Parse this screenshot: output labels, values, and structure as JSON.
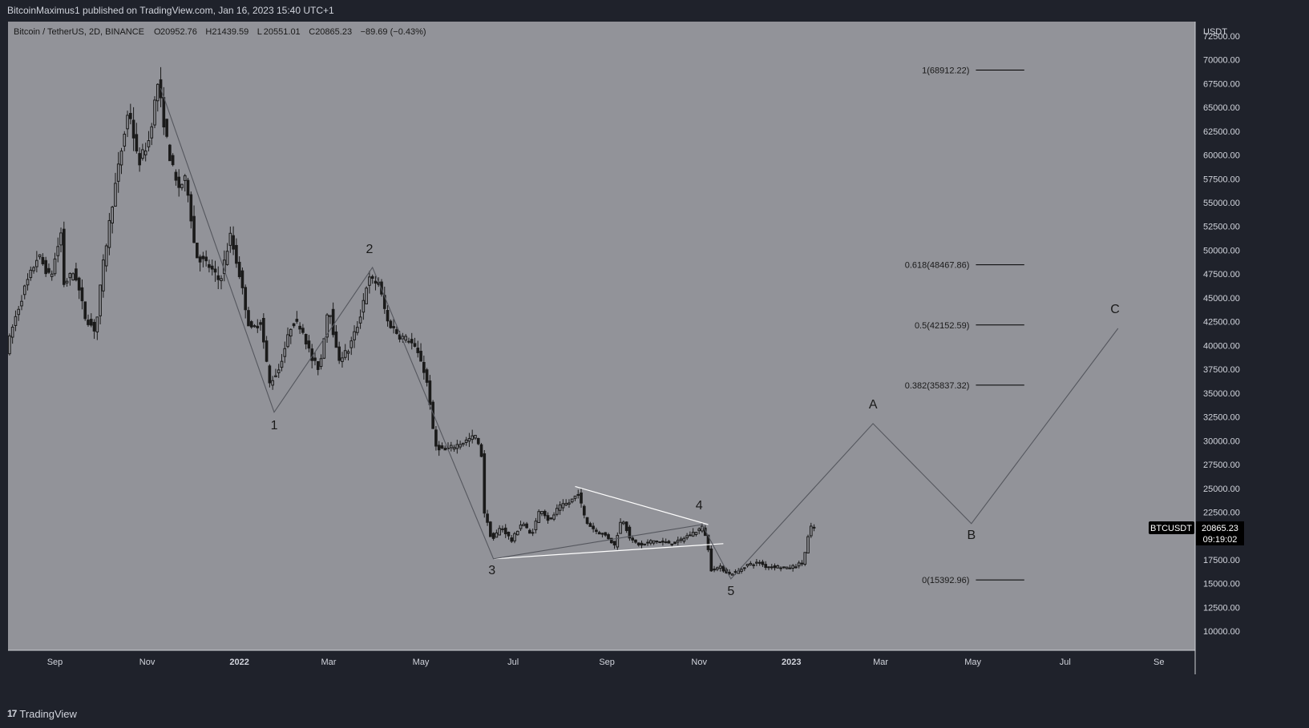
{
  "publish_line": "BitcoinMaximus1 published on TradingView.com, Jan 16, 2023 15:40 UTC+1",
  "footer": {
    "logo_glyph": "17",
    "brand": "TradingView"
  },
  "colors": {
    "background": "#1f222b",
    "plot_bg": "#929399",
    "candle": "#1a1a1a",
    "pattern_line": "#ffffff",
    "fib_line": "#000000",
    "text_dark": "#1a1a1a",
    "text_light": "#d1d4dc",
    "label_bg": "#000000"
  },
  "chart_data": {
    "type": "candlestick",
    "title": "Bitcoin / TetherUS, 2D, BINANCE",
    "ohlc_legend": [
      {
        "key": "O",
        "value": "20952.76"
      },
      {
        "key": "H",
        "value": "21439.59"
      },
      {
        "key": "L",
        "value": "20551.01"
      },
      {
        "key": "C",
        "value": "20865.23"
      },
      {
        "key": "",
        "value": "−89.69 (−0.43%)"
      }
    ],
    "y_axis": {
      "unit": "USDT",
      "ylim": [
        8000,
        74000
      ],
      "ticks": [
        10000,
        12500,
        15000,
        17500,
        20000,
        22500,
        25000,
        27500,
        30000,
        32500,
        35000,
        37500,
        40000,
        42500,
        45000,
        47500,
        50000,
        52500,
        55000,
        57500,
        60000,
        62500,
        65000,
        67500,
        70000,
        72500
      ],
      "tick_labels": [
        "10000.00",
        "12500.00",
        "15000.00",
        "17500.00",
        "20000.00",
        "22500.00",
        "25000.00",
        "27500.00",
        "30000.00",
        "32500.00",
        "35000.00",
        "37500.00",
        "40000.00",
        "42500.00",
        "45000.00",
        "47500.00",
        "50000.00",
        "52500.00",
        "55000.00",
        "57500.00",
        "60000.00",
        "62500.00",
        "65000.00",
        "67500.00",
        "70000.00",
        "72500.00"
      ]
    },
    "x_axis": {
      "start": "2021-08-01",
      "end": "2023-09-25",
      "ticks": [
        {
          "date": "2021-09-01",
          "label": "Sep",
          "bold": false
        },
        {
          "date": "2021-11-01",
          "label": "Nov",
          "bold": false
        },
        {
          "date": "2022-01-01",
          "label": "2022",
          "bold": true
        },
        {
          "date": "2022-03-01",
          "label": "Mar",
          "bold": false
        },
        {
          "date": "2022-05-01",
          "label": "May",
          "bold": false
        },
        {
          "date": "2022-07-01",
          "label": "Jul",
          "bold": false
        },
        {
          "date": "2022-09-01",
          "label": "Sep",
          "bold": false
        },
        {
          "date": "2022-11-01",
          "label": "Nov",
          "bold": false
        },
        {
          "date": "2023-01-01",
          "label": "2023",
          "bold": true
        },
        {
          "date": "2023-03-01",
          "label": "Mar",
          "bold": false
        },
        {
          "date": "2023-05-01",
          "label": "May",
          "bold": false
        },
        {
          "date": "2023-07-01",
          "label": "Jul",
          "bold": false
        },
        {
          "date": "2023-09-01",
          "label": "Se",
          "bold": false
        }
      ]
    },
    "price_path": [
      [
        "2021-08-01",
        39500
      ],
      [
        "2021-08-06",
        42500
      ],
      [
        "2021-08-13",
        46000
      ],
      [
        "2021-08-22",
        49500
      ],
      [
        "2021-08-30",
        47000
      ],
      [
        "2021-09-06",
        51800
      ],
      [
        "2021-09-08",
        46500
      ],
      [
        "2021-09-15",
        47800
      ],
      [
        "2021-09-22",
        43000
      ],
      [
        "2021-09-29",
        41500
      ],
      [
        "2021-10-03",
        47500
      ],
      [
        "2021-10-10",
        55000
      ],
      [
        "2021-10-16",
        60500
      ],
      [
        "2021-10-21",
        65000
      ],
      [
        "2021-10-27",
        59000
      ],
      [
        "2021-11-03",
        61500
      ],
      [
        "2021-11-09",
        67500
      ],
      [
        "2021-11-16",
        60500
      ],
      [
        "2021-11-22",
        56500
      ],
      [
        "2021-11-28",
        57500
      ],
      [
        "2021-12-04",
        49500
      ],
      [
        "2021-12-12",
        48500
      ],
      [
        "2021-12-20",
        46700
      ],
      [
        "2021-12-27",
        51500
      ],
      [
        "2022-01-02",
        47500
      ],
      [
        "2022-01-09",
        41500
      ],
      [
        "2022-01-16",
        42500
      ],
      [
        "2022-01-22",
        36000
      ],
      [
        "2022-01-28",
        37500
      ],
      [
        "2022-02-06",
        42500
      ],
      [
        "2022-02-12",
        42000
      ],
      [
        "2022-02-19",
        38500
      ],
      [
        "2022-02-24",
        37500
      ],
      [
        "2022-03-02",
        44500
      ],
      [
        "2022-03-08",
        38500
      ],
      [
        "2022-03-15",
        39500
      ],
      [
        "2022-03-22",
        42500
      ],
      [
        "2022-03-28",
        47000
      ],
      [
        "2022-04-04",
        46500
      ],
      [
        "2022-04-10",
        42500
      ],
      [
        "2022-04-18",
        41000
      ],
      [
        "2022-04-25",
        40500
      ],
      [
        "2022-05-02",
        38500
      ],
      [
        "2022-05-07",
        35500
      ],
      [
        "2022-05-11",
        29500
      ],
      [
        "2022-05-18",
        29000
      ],
      [
        "2022-05-25",
        29500
      ],
      [
        "2022-06-01",
        30000
      ],
      [
        "2022-06-07",
        30500
      ],
      [
        "2022-06-11",
        28500
      ],
      [
        "2022-06-13",
        22500
      ],
      [
        "2022-06-18",
        19500
      ],
      [
        "2022-06-24",
        21000
      ],
      [
        "2022-07-01",
        19500
      ],
      [
        "2022-07-08",
        21500
      ],
      [
        "2022-07-14",
        20000
      ],
      [
        "2022-07-20",
        23000
      ],
      [
        "2022-07-26",
        21500
      ],
      [
        "2022-08-01",
        23000
      ],
      [
        "2022-08-08",
        23500
      ],
      [
        "2022-08-14",
        24500
      ],
      [
        "2022-08-19",
        21500
      ],
      [
        "2022-08-26",
        20500
      ],
      [
        "2022-09-02",
        20000
      ],
      [
        "2022-09-07",
        19000
      ],
      [
        "2022-09-12",
        22000
      ],
      [
        "2022-09-18",
        19500
      ],
      [
        "2022-09-25",
        19000
      ],
      [
        "2022-10-02",
        19500
      ],
      [
        "2022-10-10",
        19300
      ],
      [
        "2022-10-18",
        19300
      ],
      [
        "2022-10-25",
        20000
      ],
      [
        "2022-10-31",
        20500
      ],
      [
        "2022-11-05",
        21000
      ],
      [
        "2022-11-08",
        18500
      ],
      [
        "2022-11-10",
        16500
      ],
      [
        "2022-11-16",
        16700
      ],
      [
        "2022-11-22",
        16000
      ],
      [
        "2022-11-28",
        16300
      ],
      [
        "2022-12-04",
        17000
      ],
      [
        "2022-12-12",
        17200
      ],
      [
        "2022-12-16",
        16800
      ],
      [
        "2022-12-24",
        16800
      ],
      [
        "2022-12-30",
        16600
      ],
      [
        "2023-01-05",
        16900
      ],
      [
        "2023-01-09",
        17200
      ],
      [
        "2023-01-12",
        18800
      ],
      [
        "2023-01-14",
        20900
      ],
      [
        "2023-01-16",
        20865
      ]
    ],
    "wave_path": [
      [
        "2021-11-10",
        67000
      ],
      [
        "2022-01-24",
        33000
      ],
      [
        "2022-03-30",
        48200
      ],
      [
        "2022-06-18",
        17600
      ],
      [
        "2022-11-03",
        21200
      ],
      [
        "2022-11-22",
        15500
      ],
      [
        "2023-02-24",
        31800
      ],
      [
        "2023-04-30",
        21300
      ],
      [
        "2023-08-05",
        41800
      ]
    ],
    "triangle_lines": [
      [
        [
          "2022-08-11",
          25200
        ],
        [
          "2022-11-07",
          21200
        ]
      ],
      [
        [
          "2022-06-18",
          17600
        ],
        [
          "2022-11-17",
          19200
        ]
      ]
    ],
    "wave_labels": [
      {
        "text": "1",
        "date": "2022-01-24",
        "price": 31200
      },
      {
        "text": "2",
        "date": "2022-03-28",
        "price": 49700
      },
      {
        "text": "3",
        "date": "2022-06-17",
        "price": 16000
      },
      {
        "text": "4",
        "date": "2022-11-01",
        "price": 22800
      },
      {
        "text": "5",
        "date": "2022-11-22",
        "price": 13800
      },
      {
        "text": "A",
        "date": "2023-02-24",
        "price": 33400
      },
      {
        "text": "B",
        "date": "2023-04-30",
        "price": 19700
      },
      {
        "text": "C",
        "date": "2023-08-03",
        "price": 43400
      }
    ],
    "fib_levels": [
      {
        "ratio_label": "1",
        "value": 68912.22
      },
      {
        "ratio_label": "0.618",
        "value": 48467.86
      },
      {
        "ratio_label": "0.5",
        "value": 42152.59
      },
      {
        "ratio_label": "0.382",
        "value": 35837.32
      },
      {
        "ratio_label": "0",
        "value": 15392.96
      }
    ],
    "fib_range": {
      "start": "2023-05-03",
      "end": "2023-06-04"
    },
    "price_tag": {
      "symbol": "BTCUSDT",
      "value": "20865.23",
      "countdown": "09:19:02",
      "price": 20865.23
    }
  }
}
